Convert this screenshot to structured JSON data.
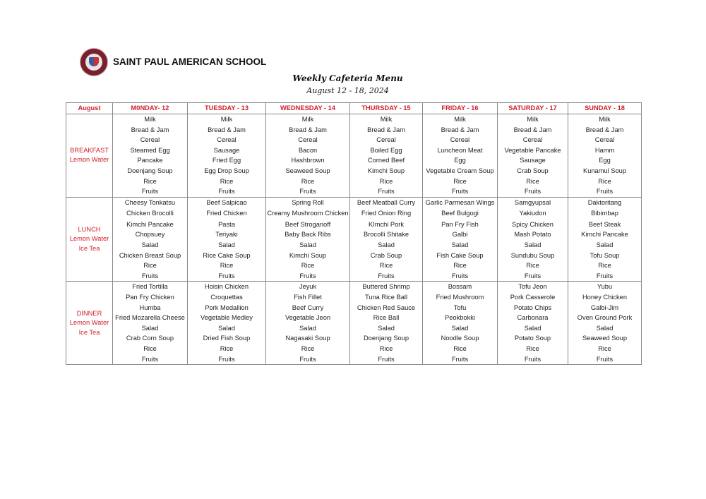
{
  "header": {
    "school_name": "SAINT PAUL AMERICAN SCHOOL",
    "title": "Weekly Cafeteria Menu",
    "date_range": "August 12 - 18, 2024"
  },
  "colors": {
    "accent": "#d0202a",
    "logo": "#7a1f2b"
  },
  "table": {
    "corner": "August",
    "days": [
      "M0NDAY- 12",
      "TUESDAY - 13",
      "WEDNESDAY - 14",
      "THURSDAY - 15",
      "FRIDAY - 16",
      "SATURDAY - 17",
      "SUNDAY - 18"
    ],
    "meals": [
      {
        "label": [
          "BREAKFAST",
          "Lemon Water"
        ],
        "menus": [
          [
            "Milk",
            "Bread & Jam",
            "Cereal",
            "Steamed Egg",
            "Pancake",
            "Doenjang Soup",
            "Rice",
            "Fruits"
          ],
          [
            "Milk",
            "Bread & Jam",
            "Cereal",
            "Sausage",
            "Fried Egg",
            "Egg Drop Soup",
            "Rice",
            "Fruits"
          ],
          [
            "Milk",
            "Bread & Jam",
            "Cereal",
            "Bacon",
            "Hashbrown",
            "Seaweed Soup",
            "Rice",
            "Fruits"
          ],
          [
            "Milk",
            "Bread & Jam",
            "Cereal",
            "Boiled Egg",
            "Corned Beef",
            "Kimchi Soup",
            "Rice",
            "Fruits"
          ],
          [
            "Milk",
            "Bread & Jam",
            "Cereal",
            "Luncheon Meat",
            "Egg",
            "Vegetable Cream Soup",
            "Rice",
            "Fruits"
          ],
          [
            "Milk",
            "Bread & Jam",
            "Cereal",
            "Vegetable Pancake",
            "Sausage",
            "Crab Soup",
            "Rice",
            "Fruits"
          ],
          [
            "Milk",
            "Bread & Jam",
            "Cereal",
            "Hamm",
            "Egg",
            "Kunamul Soup",
            "Rice",
            "Fruits"
          ]
        ]
      },
      {
        "label": [
          "LUNCH",
          "Lemon Water",
          "Ice Tea"
        ],
        "menus": [
          [
            "Cheesy Tonkatsu",
            "Chicken Brocolli",
            "Kimchi Pancake",
            "Chopsuey",
            "Salad",
            "Chicken Breast Soup",
            "Rice",
            "Fruits"
          ],
          [
            "Beef Salpicao",
            "Fried Chicken",
            "Pasta",
            "Teriyaki",
            "Salad",
            "Rice Cake Soup",
            "Rice",
            "Fruits"
          ],
          [
            "Spring Roll",
            "Creamy Mushroom Chicken",
            "Beef Stroganoff",
            "Baby Back Ribs",
            "Salad",
            "Kimchi Soup",
            "Rice",
            "Fruits"
          ],
          [
            "Beef Meatball Curry",
            "Fried Onion Ring",
            "KImchi Pork",
            "Brocolli Shitake",
            "Salad",
            "Crab Soup",
            "Rice",
            "Fruits"
          ],
          [
            "Garlic Parmesan Wings",
            "Beef Bulgogi",
            "Pan Fry Fish",
            "Galbi",
            "Salad",
            "Fish Cake Soup",
            "Rice",
            "Fruits"
          ],
          [
            "Samgyupsal",
            "Yakiudon",
            "Spicy Chicken",
            "Mash Potato",
            "Salad",
            "Sundubu Soup",
            "Rice",
            "Fruits"
          ],
          [
            "Daktoritang",
            "Bibimbap",
            "Beef Steak",
            "Kimchi Pancake",
            "Salad",
            "Tofu Soup",
            "Rice",
            "Fruits"
          ]
        ]
      },
      {
        "label": [
          "DINNER",
          "Lemon Water",
          "Ice Tea"
        ],
        "menus": [
          [
            "Fried Tortilla",
            "Pan Fry Chicken",
            "Humba",
            "Fried Mozarella Cheese",
            "Salad",
            "Crab Corn Soup",
            "Rice",
            "Fruits"
          ],
          [
            "Hoisin Chicken",
            "Croquettas",
            "Pork Medallion",
            "Vegetable Medley",
            "Salad",
            "Dried Fish Soup",
            "Rice",
            "Fruits"
          ],
          [
            "Jeyuk",
            "Fish Fillet",
            "Beef Curry",
            "Vegetable Jeon",
            "Salad",
            "Nagasaki Soup",
            "Rice",
            "Fruits"
          ],
          [
            "Buttered Shrimp",
            "Tuna Rice Ball",
            "Chicken Red Sauce",
            "Rice Ball",
            "Salad",
            "Doenjang Soup",
            "Rice",
            "Fruits"
          ],
          [
            "Bossam",
            "Fried Mushroom",
            "Tofu",
            "Peokbokki",
            "Salad",
            "Noodle Soup",
            "Rice",
            "Fruits"
          ],
          [
            "Tofu Jeon",
            "Pork Casserole",
            "Potato Chips",
            "Carbonara",
            "Salad",
            "Potato Soup",
            "Rice",
            "Fruits"
          ],
          [
            "Yubu",
            "Honey Chicken",
            "Galbi-Jim",
            "Oven Ground Pork",
            "Salad",
            "Seaweed Soup",
            "Rice",
            "Fruits"
          ]
        ]
      }
    ]
  }
}
